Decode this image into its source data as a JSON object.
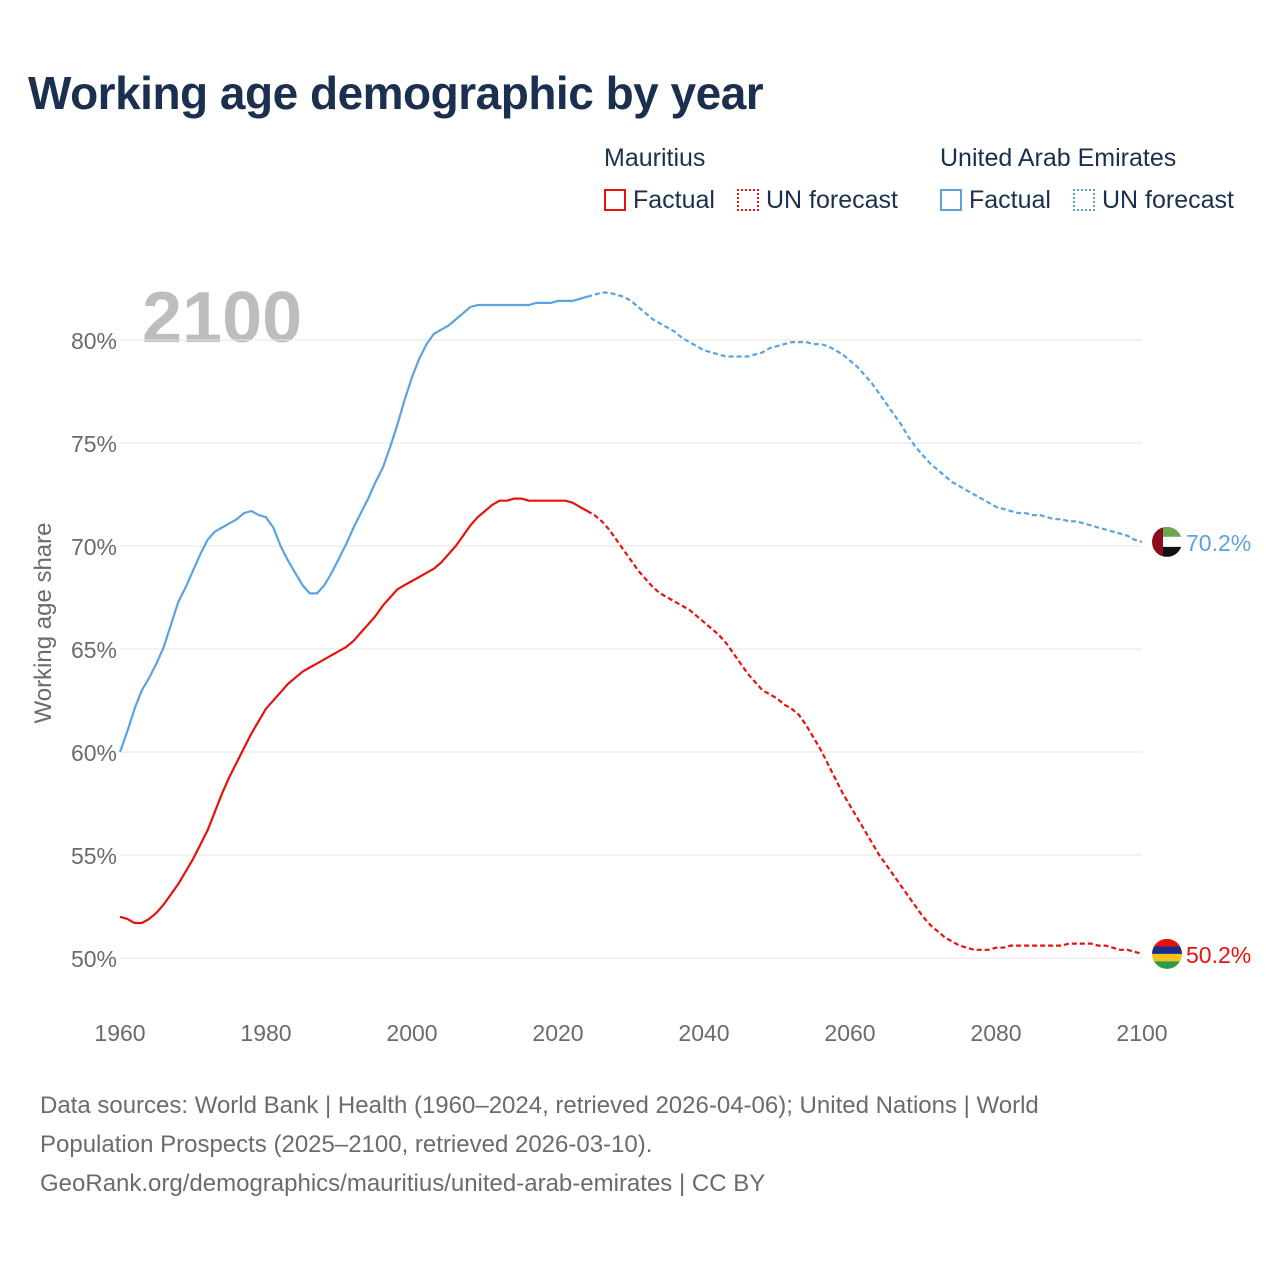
{
  "title": "Working age demographic by year",
  "legend": {
    "groups": [
      {
        "country": "Mauritius",
        "color": "#e8120c",
        "factual_label": "Factual",
        "forecast_label": "UN forecast"
      },
      {
        "country": "United Arab Emirates",
        "color": "#5ba3e0",
        "forecast_color": "#5ba3c8",
        "factual_label": "Factual",
        "forecast_label": "UN forecast"
      }
    ]
  },
  "sources": {
    "line1": "Data sources: World Bank | Health (1960–2024, retrieved 2026-04-06); United Nations | World",
    "line2": "Population Prospects (2025–2100, retrieved 2026-03-10).",
    "line3": "GeoRank.org/demographics/mauritius/united-arab-emirates | CC BY"
  },
  "chart_data": {
    "type": "line",
    "title": "Working age demographic by year",
    "year_watermark": "2100",
    "xlabel": "",
    "ylabel": "Working age share",
    "xlim": [
      1960,
      2100
    ],
    "ylim": [
      48,
      84
    ],
    "x_ticks": [
      1960,
      1980,
      2000,
      2020,
      2040,
      2060,
      2080,
      2100
    ],
    "x_tick_labels": [
      "1960",
      "1980",
      "2000",
      "2020",
      "2040",
      "2060",
      "2080",
      "2100"
    ],
    "y_ticks": [
      50,
      55,
      60,
      65,
      70,
      75,
      80
    ],
    "y_tick_labels": [
      "50%",
      "55%",
      "60%",
      "65%",
      "70%",
      "75%",
      "80%"
    ],
    "grid": true,
    "factual_end_year": 2024,
    "series": [
      {
        "name": "Mauritius",
        "color": "#e8120c",
        "end_label": "50.2%",
        "flag": "mauritius-flag",
        "points": [
          [
            1960,
            52.0
          ],
          [
            1961,
            51.9
          ],
          [
            1962,
            51.7
          ],
          [
            1963,
            51.7
          ],
          [
            1964,
            51.9
          ],
          [
            1965,
            52.2
          ],
          [
            1966,
            52.6
          ],
          [
            1967,
            53.1
          ],
          [
            1968,
            53.6
          ],
          [
            1969,
            54.2
          ],
          [
            1970,
            54.8
          ],
          [
            1971,
            55.5
          ],
          [
            1972,
            56.2
          ],
          [
            1973,
            57.1
          ],
          [
            1974,
            58.0
          ],
          [
            1975,
            58.8
          ],
          [
            1976,
            59.5
          ],
          [
            1977,
            60.2
          ],
          [
            1978,
            60.9
          ],
          [
            1979,
            61.5
          ],
          [
            1980,
            62.1
          ],
          [
            1981,
            62.5
          ],
          [
            1982,
            62.9
          ],
          [
            1983,
            63.3
          ],
          [
            1984,
            63.6
          ],
          [
            1985,
            63.9
          ],
          [
            1986,
            64.1
          ],
          [
            1987,
            64.3
          ],
          [
            1988,
            64.5
          ],
          [
            1989,
            64.7
          ],
          [
            1990,
            64.9
          ],
          [
            1991,
            65.1
          ],
          [
            1992,
            65.4
          ],
          [
            1993,
            65.8
          ],
          [
            1994,
            66.2
          ],
          [
            1995,
            66.6
          ],
          [
            1996,
            67.1
          ],
          [
            1997,
            67.5
          ],
          [
            1998,
            67.9
          ],
          [
            1999,
            68.1
          ],
          [
            2000,
            68.3
          ],
          [
            2001,
            68.5
          ],
          [
            2002,
            68.7
          ],
          [
            2003,
            68.9
          ],
          [
            2004,
            69.2
          ],
          [
            2005,
            69.6
          ],
          [
            2006,
            70.0
          ],
          [
            2007,
            70.5
          ],
          [
            2008,
            71.0
          ],
          [
            2009,
            71.4
          ],
          [
            2010,
            71.7
          ],
          [
            2011,
            72.0
          ],
          [
            2012,
            72.2
          ],
          [
            2013,
            72.2
          ],
          [
            2014,
            72.3
          ],
          [
            2015,
            72.3
          ],
          [
            2016,
            72.2
          ],
          [
            2017,
            72.2
          ],
          [
            2018,
            72.2
          ],
          [
            2019,
            72.2
          ],
          [
            2020,
            72.2
          ],
          [
            2021,
            72.2
          ],
          [
            2022,
            72.1
          ],
          [
            2023,
            71.9
          ],
          [
            2024,
            71.7
          ],
          [
            2025,
            71.5
          ],
          [
            2026,
            71.2
          ],
          [
            2027,
            70.8
          ],
          [
            2028,
            70.3
          ],
          [
            2029,
            69.8
          ],
          [
            2030,
            69.3
          ],
          [
            2031,
            68.8
          ],
          [
            2032,
            68.4
          ],
          [
            2033,
            68.0
          ],
          [
            2034,
            67.7
          ],
          [
            2035,
            67.5
          ],
          [
            2036,
            67.3
          ],
          [
            2037,
            67.1
          ],
          [
            2038,
            66.9
          ],
          [
            2039,
            66.6
          ],
          [
            2040,
            66.3
          ],
          [
            2041,
            66.0
          ],
          [
            2042,
            65.7
          ],
          [
            2043,
            65.3
          ],
          [
            2044,
            64.8
          ],
          [
            2045,
            64.3
          ],
          [
            2046,
            63.8
          ],
          [
            2047,
            63.4
          ],
          [
            2048,
            63.0
          ],
          [
            2049,
            62.8
          ],
          [
            2050,
            62.6
          ],
          [
            2051,
            62.3
          ],
          [
            2052,
            62.1
          ],
          [
            2053,
            61.8
          ],
          [
            2054,
            61.3
          ],
          [
            2055,
            60.7
          ],
          [
            2056,
            60.1
          ],
          [
            2057,
            59.4
          ],
          [
            2058,
            58.7
          ],
          [
            2059,
            58.0
          ],
          [
            2060,
            57.4
          ],
          [
            2061,
            56.8
          ],
          [
            2062,
            56.2
          ],
          [
            2063,
            55.6
          ],
          [
            2064,
            55.0
          ],
          [
            2065,
            54.5
          ],
          [
            2066,
            54.0
          ],
          [
            2067,
            53.5
          ],
          [
            2068,
            53.0
          ],
          [
            2069,
            52.5
          ],
          [
            2070,
            52.0
          ],
          [
            2071,
            51.6
          ],
          [
            2072,
            51.3
          ],
          [
            2073,
            51.0
          ],
          [
            2074,
            50.8
          ],
          [
            2075,
            50.6
          ],
          [
            2076,
            50.5
          ],
          [
            2077,
            50.4
          ],
          [
            2078,
            50.4
          ],
          [
            2079,
            50.4
          ],
          [
            2080,
            50.5
          ],
          [
            2081,
            50.5
          ],
          [
            2082,
            50.6
          ],
          [
            2083,
            50.6
          ],
          [
            2084,
            50.6
          ],
          [
            2085,
            50.6
          ],
          [
            2086,
            50.6
          ],
          [
            2087,
            50.6
          ],
          [
            2088,
            50.6
          ],
          [
            2089,
            50.6
          ],
          [
            2090,
            50.7
          ],
          [
            2091,
            50.7
          ],
          [
            2092,
            50.7
          ],
          [
            2093,
            50.7
          ],
          [
            2094,
            50.6
          ],
          [
            2095,
            50.6
          ],
          [
            2096,
            50.5
          ],
          [
            2097,
            50.4
          ],
          [
            2098,
            50.4
          ],
          [
            2099,
            50.3
          ],
          [
            2100,
            50.2
          ]
        ]
      },
      {
        "name": "United Arab Emirates",
        "color": "#5ba3e0",
        "end_label": "70.2%",
        "flag": "uae-flag",
        "points": [
          [
            1960,
            60.0
          ],
          [
            1961,
            61.0
          ],
          [
            1962,
            62.1
          ],
          [
            1963,
            63.0
          ],
          [
            1964,
            63.6
          ],
          [
            1965,
            64.3
          ],
          [
            1966,
            65.1
          ],
          [
            1967,
            66.2
          ],
          [
            1968,
            67.3
          ],
          [
            1969,
            68.0
          ],
          [
            1970,
            68.8
          ],
          [
            1971,
            69.6
          ],
          [
            1972,
            70.3
          ],
          [
            1973,
            70.7
          ],
          [
            1974,
            70.9
          ],
          [
            1975,
            71.1
          ],
          [
            1976,
            71.3
          ],
          [
            1977,
            71.6
          ],
          [
            1978,
            71.7
          ],
          [
            1979,
            71.5
          ],
          [
            1980,
            71.4
          ],
          [
            1981,
            70.9
          ],
          [
            1982,
            70.0
          ],
          [
            1983,
            69.3
          ],
          [
            1984,
            68.7
          ],
          [
            1985,
            68.1
          ],
          [
            1986,
            67.7
          ],
          [
            1987,
            67.7
          ],
          [
            1988,
            68.1
          ],
          [
            1989,
            68.7
          ],
          [
            1990,
            69.4
          ],
          [
            1991,
            70.1
          ],
          [
            1992,
            70.9
          ],
          [
            1993,
            71.6
          ],
          [
            1994,
            72.3
          ],
          [
            1995,
            73.1
          ],
          [
            1996,
            73.8
          ],
          [
            1997,
            74.8
          ],
          [
            1998,
            75.9
          ],
          [
            1999,
            77.1
          ],
          [
            2000,
            78.2
          ],
          [
            2001,
            79.1
          ],
          [
            2002,
            79.8
          ],
          [
            2003,
            80.3
          ],
          [
            2004,
            80.5
          ],
          [
            2005,
            80.7
          ],
          [
            2006,
            81.0
          ],
          [
            2007,
            81.3
          ],
          [
            2008,
            81.6
          ],
          [
            2009,
            81.7
          ],
          [
            2010,
            81.7
          ],
          [
            2011,
            81.7
          ],
          [
            2012,
            81.7
          ],
          [
            2013,
            81.7
          ],
          [
            2014,
            81.7
          ],
          [
            2015,
            81.7
          ],
          [
            2016,
            81.7
          ],
          [
            2017,
            81.8
          ],
          [
            2018,
            81.8
          ],
          [
            2019,
            81.8
          ],
          [
            2020,
            81.9
          ],
          [
            2021,
            81.9
          ],
          [
            2022,
            81.9
          ],
          [
            2023,
            82.0
          ],
          [
            2024,
            82.1
          ],
          [
            2025,
            82.2
          ],
          [
            2026,
            82.3
          ],
          [
            2027,
            82.3
          ],
          [
            2028,
            82.2
          ],
          [
            2029,
            82.1
          ],
          [
            2030,
            81.9
          ],
          [
            2031,
            81.6
          ],
          [
            2032,
            81.3
          ],
          [
            2033,
            81.0
          ],
          [
            2034,
            80.8
          ],
          [
            2035,
            80.6
          ],
          [
            2036,
            80.4
          ],
          [
            2037,
            80.1
          ],
          [
            2038,
            79.9
          ],
          [
            2039,
            79.7
          ],
          [
            2040,
            79.5
          ],
          [
            2041,
            79.4
          ],
          [
            2042,
            79.3
          ],
          [
            2043,
            79.2
          ],
          [
            2044,
            79.2
          ],
          [
            2045,
            79.2
          ],
          [
            2046,
            79.2
          ],
          [
            2047,
            79.3
          ],
          [
            2048,
            79.4
          ],
          [
            2049,
            79.6
          ],
          [
            2050,
            79.7
          ],
          [
            2051,
            79.8
          ],
          [
            2052,
            79.9
          ],
          [
            2053,
            79.9
          ],
          [
            2054,
            79.9
          ],
          [
            2055,
            79.8
          ],
          [
            2056,
            79.8
          ],
          [
            2057,
            79.7
          ],
          [
            2058,
            79.5
          ],
          [
            2059,
            79.3
          ],
          [
            2060,
            79.0
          ],
          [
            2061,
            78.7
          ],
          [
            2062,
            78.3
          ],
          [
            2063,
            77.9
          ],
          [
            2064,
            77.4
          ],
          [
            2065,
            76.9
          ],
          [
            2066,
            76.4
          ],
          [
            2067,
            75.9
          ],
          [
            2068,
            75.3
          ],
          [
            2069,
            74.8
          ],
          [
            2070,
            74.4
          ],
          [
            2071,
            74.0
          ],
          [
            2072,
            73.7
          ],
          [
            2073,
            73.4
          ],
          [
            2074,
            73.1
          ],
          [
            2075,
            72.9
          ],
          [
            2076,
            72.7
          ],
          [
            2077,
            72.5
          ],
          [
            2078,
            72.3
          ],
          [
            2079,
            72.1
          ],
          [
            2080,
            71.9
          ],
          [
            2081,
            71.8
          ],
          [
            2082,
            71.7
          ],
          [
            2083,
            71.6
          ],
          [
            2084,
            71.6
          ],
          [
            2085,
            71.5
          ],
          [
            2086,
            71.5
          ],
          [
            2087,
            71.4
          ],
          [
            2088,
            71.3
          ],
          [
            2089,
            71.3
          ],
          [
            2090,
            71.2
          ],
          [
            2091,
            71.2
          ],
          [
            2092,
            71.1
          ],
          [
            2093,
            71.0
          ],
          [
            2094,
            70.9
          ],
          [
            2095,
            70.8
          ],
          [
            2096,
            70.7
          ],
          [
            2097,
            70.6
          ],
          [
            2098,
            70.5
          ],
          [
            2099,
            70.3
          ],
          [
            2100,
            70.2
          ]
        ]
      }
    ]
  }
}
